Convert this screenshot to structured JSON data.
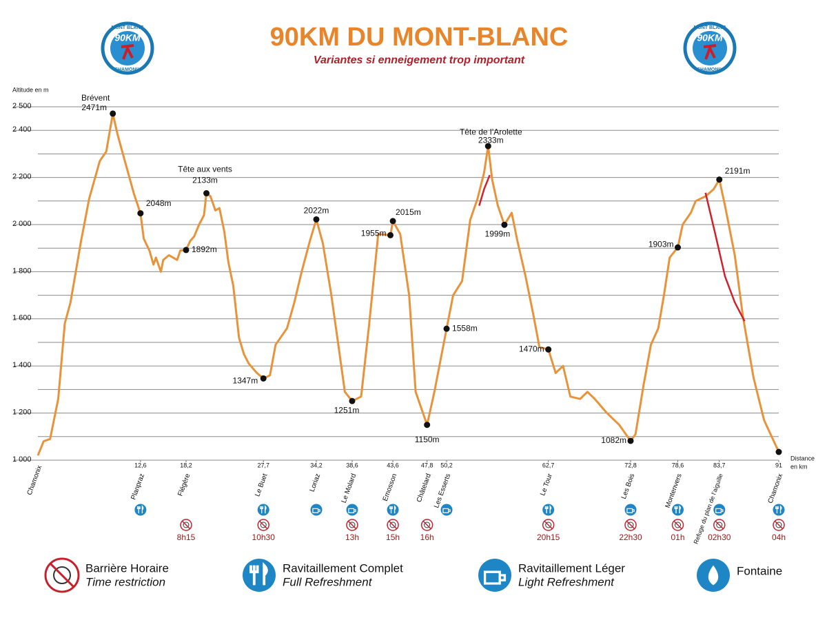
{
  "chart_data": {
    "type": "line",
    "title": "90KM DU MONT-BLANC",
    "subtitle": "Variantes si enneigement trop important",
    "logo": {
      "top": "MONT BLANC",
      "center": "90KM",
      "bottom": "CHAMONIX"
    },
    "ylabel": "Altitude en m",
    "xlabel": [
      "Distance",
      "en km"
    ],
    "xlim": [
      0,
      91
    ],
    "ylim": [
      1000,
      2500
    ],
    "yticks": [
      {
        "value": 1000,
        "label": "1 000"
      },
      {
        "value": 1200,
        "label": "1 200"
      },
      {
        "value": 1400,
        "label": "1 400"
      },
      {
        "value": 1600,
        "label": "1 600"
      },
      {
        "value": 1800,
        "label": "1 800"
      },
      {
        "value": 2000,
        "label": "2 000"
      },
      {
        "value": 2200,
        "label": "2 200"
      },
      {
        "value": 2400,
        "label": "2 400"
      },
      {
        "value": 2500,
        "label": "2 500"
      }
    ],
    "yminor": [
      1100,
      1300,
      1500,
      1700,
      1900,
      2100,
      2300
    ],
    "grid": true,
    "series": [
      {
        "color": "#e8923a",
        "x": [
          0,
          0.7,
          1.5,
          2.5,
          3.3,
          4.0,
          4.5,
          5.3,
          6.3,
          7.6,
          8.4,
          9.2,
          9.8,
          10.6,
          11.8,
          12.6,
          13.0,
          13.7,
          14.2,
          14.5,
          15.1,
          15.4,
          16.1,
          17.1,
          17.5,
          18.2,
          18.7,
          19.2,
          19.8,
          20.4,
          20.7,
          21.2,
          21.8,
          22.3,
          22.9,
          23.4,
          24.0,
          24.7,
          25.3,
          25.9,
          26.9,
          27.7,
          28.5,
          29.2,
          29.8,
          30.6,
          31.5,
          32.4,
          33.4,
          34.2,
          35.0,
          36.0,
          36.9,
          37.7,
          38.6,
          39.7,
          40.7,
          41.8,
          43.3,
          43.6,
          44.5,
          45.6,
          46.4,
          47.8,
          48.7,
          50.2,
          51.0,
          52.1,
          53.1,
          54.0,
          54.8,
          55.3,
          55.8,
          56.5,
          57.3,
          58.2,
          58.9,
          59.9,
          60.9,
          61.6,
          62.7,
          63.6,
          64.5,
          65.4,
          66.6,
          67.5,
          68.4,
          69.9,
          71.4,
          72.8,
          73.4,
          74.4,
          75.3,
          76.2,
          76.9,
          77.6,
          78.6,
          79.2,
          80.2,
          80.8,
          82.0,
          83.0,
          83.7,
          84.4,
          85.6,
          86.6,
          87.9,
          89.2,
          91
        ],
        "values": [
          1020,
          1080,
          1090,
          1260,
          1580,
          1670,
          1770,
          1930,
          2110,
          2270,
          2310,
          2471,
          2380,
          2280,
          2130,
          2048,
          1940,
          1890,
          1830,
          1860,
          1800,
          1850,
          1870,
          1850,
          1890,
          1892,
          1930,
          1950,
          2000,
          2040,
          2133,
          2120,
          2060,
          2070,
          1970,
          1840,
          1740,
          1520,
          1450,
          1410,
          1370,
          1347,
          1360,
          1490,
          1520,
          1560,
          1670,
          1800,
          1930,
          2022,
          1920,
          1710,
          1490,
          1290,
          1251,
          1270,
          1580,
          1960,
          1955,
          2015,
          1960,
          1700,
          1290,
          1150,
          1290,
          1558,
          1700,
          1760,
          2020,
          2110,
          2220,
          2333,
          2190,
          2080,
          1999,
          2050,
          1930,
          1780,
          1610,
          1480,
          1470,
          1370,
          1400,
          1270,
          1260,
          1290,
          1260,
          1200,
          1150,
          1082,
          1110,
          1320,
          1490,
          1560,
          1700,
          1860,
          1903,
          2000,
          2050,
          2100,
          2120,
          2150,
          2191,
          2080,
          1870,
          1610,
          1350,
          1170,
          1035
        ]
      }
    ],
    "variants": [
      {
        "color": "#d0202a",
        "x": [
          54.2,
          54.8,
          55.5
        ],
        "values": [
          2080,
          2150,
          2210
        ]
      },
      {
        "color": "#d0202a",
        "x": [
          82.0,
          83.2,
          84.4,
          85.6,
          86.8
        ],
        "values": [
          2135,
          1960,
          1780,
          1670,
          1590
        ]
      }
    ],
    "waypoints": [
      {
        "name": "Brévent",
        "km": 9.2,
        "alt": 2471,
        "label": "2471m"
      },
      {
        "km": 12.6,
        "alt": 2048,
        "label": "2048m"
      },
      {
        "km": 18.2,
        "alt": 1892,
        "label": "1892m"
      },
      {
        "name": "Tête aux vents",
        "km": 20.7,
        "alt": 2133,
        "label": "2133m"
      },
      {
        "km": 27.7,
        "alt": 1347,
        "label": "1347m"
      },
      {
        "km": 34.2,
        "alt": 2022,
        "label": "2022m"
      },
      {
        "km": 38.6,
        "alt": 1251,
        "label": "1251m"
      },
      {
        "km": 43.3,
        "alt": 1955,
        "label": "1955m"
      },
      {
        "km": 43.6,
        "alt": 2015,
        "label": "2015m"
      },
      {
        "km": 47.8,
        "alt": 1150,
        "label": "1150m"
      },
      {
        "km": 50.2,
        "alt": 1558,
        "label": "1558m"
      },
      {
        "name": "Tête de l’Arolette",
        "km": 55.3,
        "alt": 2333,
        "label": "2333m"
      },
      {
        "km": 57.3,
        "alt": 1999,
        "label": "1999m"
      },
      {
        "km": 62.7,
        "alt": 1470,
        "label": "1470m"
      },
      {
        "km": 72.8,
        "alt": 1082,
        "label": "1082m"
      },
      {
        "km": 78.6,
        "alt": 1903,
        "label": "1903m"
      },
      {
        "km": 83.7,
        "alt": 2191,
        "label": "2191m"
      },
      {
        "km": 91,
        "alt": 1035
      }
    ],
    "stations": [
      {
        "name": "Chamonix"
      },
      {
        "name": "Planpraz",
        "km": {
          "value": 12.6,
          "label": "12,6"
        },
        "service": "full"
      },
      {
        "name": "Flégère",
        "km": {
          "value": 18.2,
          "label": "18,2"
        },
        "time": "8h15"
      },
      {
        "name": "Le Buet",
        "km": {
          "value": 27.7,
          "label": "27,7"
        },
        "service": "full",
        "time": "10h30"
      },
      {
        "name": "Loriaz",
        "km": {
          "value": 34.2,
          "label": "34,2"
        },
        "service": "light"
      },
      {
        "name": "Le Molard",
        "km": {
          "value": 38.6,
          "label": "38,6"
        },
        "service": "light",
        "time": "13h"
      },
      {
        "name": "Emosson",
        "km": {
          "value": 43.6,
          "label": "43,6"
        },
        "service": "full",
        "time": "15h"
      },
      {
        "name": "Châtelard",
        "km": {
          "value": 47.8,
          "label": "47,8"
        },
        "time": "16h"
      },
      {
        "name": "Les Esserts",
        "km": {
          "value": 50.2,
          "label": "50,2"
        },
        "service": "light"
      },
      {
        "name": "Le Tour",
        "km": {
          "value": 62.7,
          "label": "62,7"
        },
        "service": "full",
        "time": "20h15"
      },
      {
        "name": "Les Bois",
        "km": {
          "value": 72.8,
          "label": "72,8"
        },
        "service": "light",
        "time": "22h30"
      },
      {
        "name": "Montenvers",
        "km": {
          "value": 78.6,
          "label": "78,6"
        },
        "service": "full",
        "time": "01h"
      },
      {
        "name": "Refuge du plan de l’aiguille",
        "km": {
          "value": 83.7,
          "label": "83,7"
        },
        "service": "light",
        "time": "02h30"
      },
      {
        "name": "Chamonix",
        "km": 91,
        "service": "full",
        "time": "04h"
      }
    ],
    "legend": [
      {
        "kind": "time",
        "title": "Barrière Horaire",
        "subtitle": "Time restriction"
      },
      {
        "kind": "full",
        "title": "Ravitaillement Complet",
        "subtitle": "Full Refreshment"
      },
      {
        "kind": "light",
        "title": "Ravitaillement Léger",
        "subtitle": "Light Refreshment"
      },
      {
        "kind": "water",
        "title": "Fontaine"
      }
    ]
  }
}
